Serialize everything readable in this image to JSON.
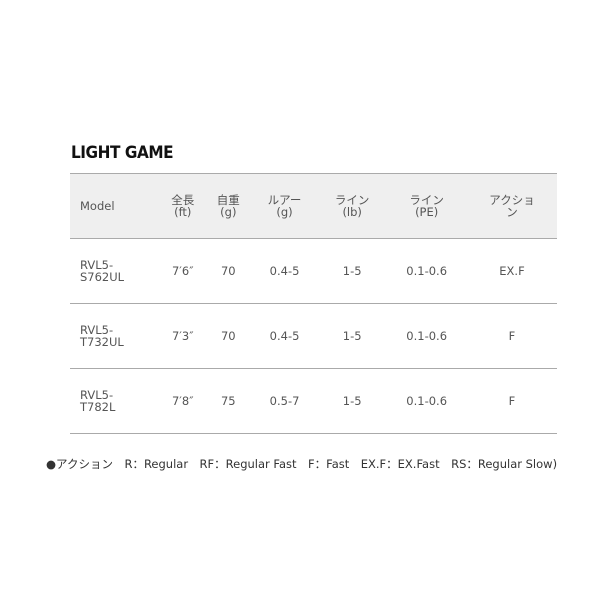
{
  "title": "LIGHT GAME",
  "headers": [
    [
      "Model",
      ""
    ],
    [
      "全長",
      "(ft)"
    ],
    [
      "自重",
      "(g)"
    ],
    [
      "ルアー",
      "(g)"
    ],
    [
      "ライン",
      "(lb)"
    ],
    [
      "ライン",
      "(PE)"
    ],
    [
      "アクショ",
      "ン"
    ]
  ],
  "rows": [
    [
      "RVL5-\nS762UL",
      "7′6″",
      "70",
      "0.4-5",
      "1-5",
      "0.1-0.6",
      "EX.F"
    ],
    [
      "RVL5-\nT732UL",
      "7′3″",
      "70",
      "0.4-5",
      "1-5",
      "0.1-0.6",
      "F"
    ],
    [
      "RVL5-\nT782L",
      "7′8″",
      "75",
      "0.5-7",
      "1-5",
      "0.1-0.6",
      "F"
    ]
  ],
  "note": "●アクション　R：Regular　RF：Regular Fast　F：Fast　EX.F：EX.Fast　RS：Regular Slow)"
}
